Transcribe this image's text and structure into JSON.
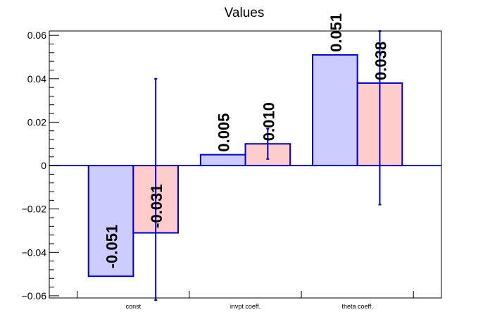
{
  "chart_data": {
    "type": "bar",
    "title": "Values",
    "categories": [
      "const",
      "invpt coeff.",
      "theta coeff."
    ],
    "series": [
      {
        "values": [
          -0.051,
          0.005,
          0.051
        ],
        "labels": [
          "-0.051",
          "0.005",
          "0.051"
        ],
        "fill": "#ccccff",
        "errors": [
          null,
          null,
          null
        ]
      },
      {
        "values": [
          -0.031,
          0.01,
          0.038
        ],
        "labels": [
          "-0.031",
          "0.010",
          "0.038"
        ],
        "fill": "#ffcccc",
        "errors": [
          [
            -0.062,
            0.04
          ],
          [
            0.003,
            0.017
          ],
          [
            -0.018,
            0.062
          ]
        ]
      }
    ],
    "ylim": [
      -0.061,
      0.062
    ],
    "yticks": [
      -0.06,
      -0.04,
      -0.02,
      0,
      0.02,
      0.04,
      0.06
    ],
    "ytick_labels": [
      "−0.06",
      "−0.04",
      "−0.02",
      "0",
      "0.02",
      "0.04",
      "0.06"
    ],
    "xlabel": "",
    "ylabel": "",
    "grid": false,
    "legend": "none",
    "colors": {
      "edge": "#0000cc",
      "axis": "#000000",
      "label": "#000000"
    }
  }
}
